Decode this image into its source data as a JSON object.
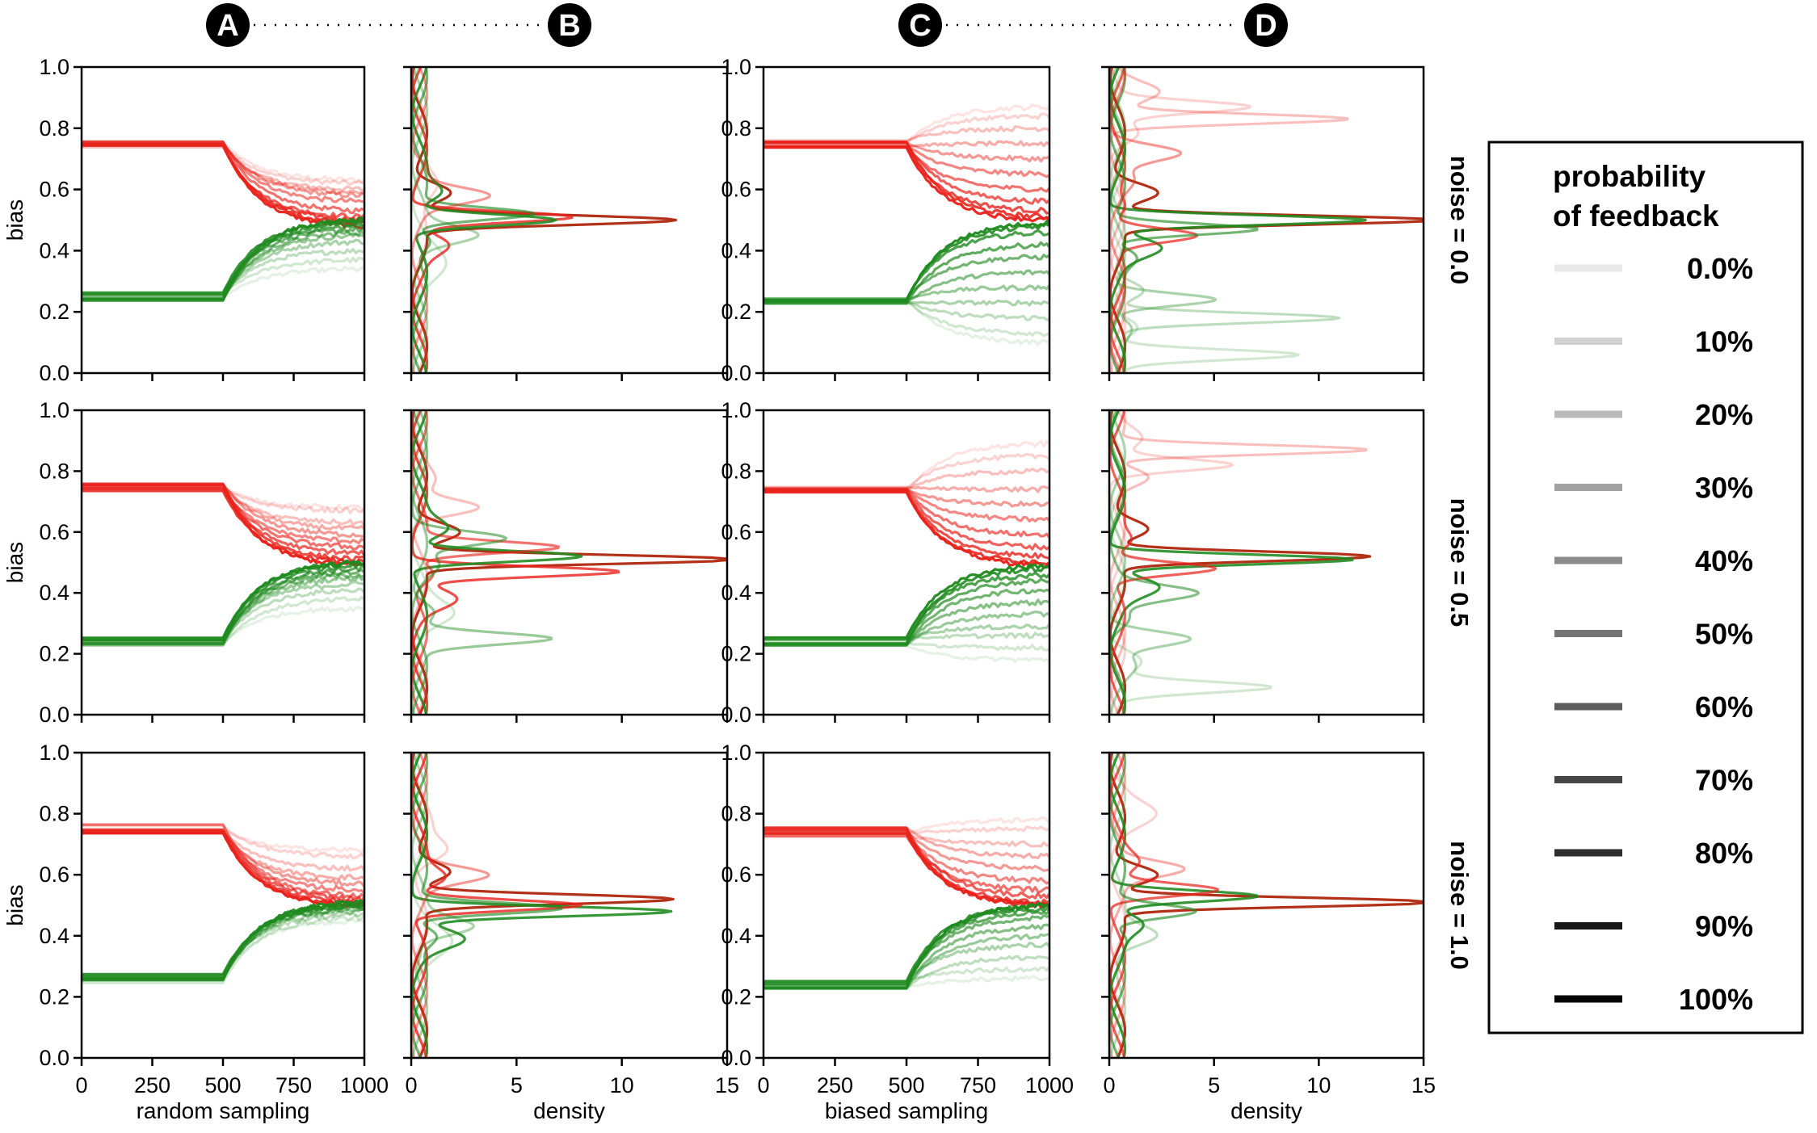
{
  "chart_data": {
    "type": "line",
    "column_badges": [
      "A",
      "B",
      "C",
      "D"
    ],
    "row_labels": [
      "noise = 0.0",
      "noise = 0.5",
      "noise = 1.0"
    ],
    "ylabel": "bias",
    "xlabels": [
      "random sampling",
      "density",
      "biased sampling",
      "density"
    ],
    "trajectory_xlim": [
      0,
      1000
    ],
    "trajectory_xticks": [
      "0",
      "250",
      "500",
      "750",
      "1000"
    ],
    "density_xlim": [
      0,
      15
    ],
    "density_xticks": [
      "0",
      "5",
      "10",
      "15"
    ],
    "ylim": [
      0,
      1
    ],
    "yticks": [
      "0.0",
      "0.2",
      "0.4",
      "0.6",
      "0.8",
      "1.0"
    ],
    "series_colors": {
      "red": "#e8221b",
      "green": "#1f8a1f",
      "dark_red": "#b22a12"
    },
    "legend": {
      "title_line1": "probability",
      "title_line2": "of feedback",
      "entries": [
        {
          "label": "0.0%",
          "p": 0.0
        },
        {
          "label": "10%",
          "p": 0.1
        },
        {
          "label": "20%",
          "p": 0.2
        },
        {
          "label": "30%",
          "p": 0.3
        },
        {
          "label": "40%",
          "p": 0.4
        },
        {
          "label": "50%",
          "p": 0.5
        },
        {
          "label": "60%",
          "p": 0.6
        },
        {
          "label": "70%",
          "p": 0.7
        },
        {
          "label": "80%",
          "p": 0.8
        },
        {
          "label": "90%",
          "p": 0.9
        },
        {
          "label": "100%",
          "p": 1.0
        }
      ]
    },
    "trajectory_panels": [
      {
        "row": 0,
        "column": "A",
        "red_start": 0.75,
        "green_start": 0.25,
        "red_end": [
          0.63,
          0.62,
          0.6,
          0.59,
          0.58,
          0.56,
          0.53,
          0.51,
          0.5,
          0.49,
          0.48
        ],
        "green_end": [
          0.34,
          0.37,
          0.4,
          0.43,
          0.45,
          0.46,
          0.47,
          0.48,
          0.49,
          0.5,
          0.5
        ]
      },
      {
        "row": 0,
        "column": "C",
        "red_start": 0.75,
        "green_start": 0.24,
        "red_end": [
          0.87,
          0.84,
          0.8,
          0.75,
          0.7,
          0.65,
          0.6,
          0.56,
          0.53,
          0.51,
          0.5
        ],
        "green_end": [
          0.1,
          0.13,
          0.18,
          0.23,
          0.28,
          0.33,
          0.38,
          0.42,
          0.46,
          0.48,
          0.49
        ]
      },
      {
        "row": 1,
        "column": "A",
        "red_start": 0.75,
        "green_start": 0.24,
        "red_end": [
          0.68,
          0.67,
          0.63,
          0.61,
          0.59,
          0.57,
          0.55,
          0.53,
          0.51,
          0.5,
          0.49
        ],
        "green_end": [
          0.35,
          0.38,
          0.41,
          0.43,
          0.45,
          0.46,
          0.47,
          0.48,
          0.49,
          0.5,
          0.5
        ]
      },
      {
        "row": 1,
        "column": "C",
        "red_start": 0.74,
        "green_start": 0.24,
        "red_end": [
          0.89,
          0.85,
          0.8,
          0.74,
          0.69,
          0.64,
          0.59,
          0.55,
          0.52,
          0.5,
          0.49
        ],
        "green_end": [
          0.18,
          0.22,
          0.26,
          0.29,
          0.33,
          0.37,
          0.41,
          0.44,
          0.46,
          0.48,
          0.49
        ]
      },
      {
        "row": 2,
        "column": "A",
        "red_start": 0.75,
        "green_start": 0.26,
        "red_end": [
          0.68,
          0.66,
          0.62,
          0.59,
          0.57,
          0.55,
          0.53,
          0.52,
          0.51,
          0.5,
          0.5
        ],
        "green_end": [
          0.45,
          0.46,
          0.47,
          0.48,
          0.49,
          0.49,
          0.5,
          0.5,
          0.5,
          0.51,
          0.51
        ]
      },
      {
        "row": 2,
        "column": "C",
        "red_start": 0.74,
        "green_start": 0.24,
        "red_end": [
          0.78,
          0.75,
          0.7,
          0.66,
          0.62,
          0.58,
          0.55,
          0.53,
          0.51,
          0.5,
          0.5
        ],
        "green_end": [
          0.26,
          0.29,
          0.33,
          0.37,
          0.4,
          0.43,
          0.46,
          0.48,
          0.49,
          0.5,
          0.5
        ]
      }
    ],
    "density_panels": [
      {
        "row": 0,
        "column": "B",
        "peaks": [
          {
            "color": "red",
            "p": 1.0,
            "center": 0.5,
            "height": 12.0
          },
          {
            "color": "red",
            "p": 0.8,
            "center": 0.51,
            "height": 7.5
          },
          {
            "color": "green",
            "p": 0.9,
            "center": 0.5,
            "height": 6.8
          },
          {
            "color": "green",
            "p": 0.6,
            "center": 0.52,
            "height": 5.5
          },
          {
            "color": "red",
            "p": 0.4,
            "center": 0.58,
            "height": 3.0
          },
          {
            "color": "green",
            "p": 0.3,
            "center": 0.45,
            "height": 2.6
          },
          {
            "color": "red",
            "p": 0.1,
            "center": 0.62,
            "height": 1.2
          },
          {
            "color": "green",
            "p": 0.1,
            "center": 0.35,
            "height": 1.0
          }
        ]
      },
      {
        "row": 0,
        "column": "D",
        "peaks": [
          {
            "color": "red",
            "p": 1.0,
            "center": 0.5,
            "height": 15.0
          },
          {
            "color": "green",
            "p": 0.9,
            "center": 0.5,
            "height": 12.0
          },
          {
            "color": "red",
            "p": 0.7,
            "center": 0.45,
            "height": 4.0
          },
          {
            "color": "green",
            "p": 0.6,
            "center": 0.47,
            "height": 7.0
          },
          {
            "color": "red",
            "p": 0.2,
            "center": 0.83,
            "height": 11.0
          },
          {
            "color": "red",
            "p": 0.1,
            "center": 0.87,
            "height": 6.0
          },
          {
            "color": "green",
            "p": 0.2,
            "center": 0.18,
            "height": 10.5
          },
          {
            "color": "green",
            "p": 0.3,
            "center": 0.24,
            "height": 5.0
          },
          {
            "color": "green",
            "p": 0.1,
            "center": 0.06,
            "height": 8.5
          },
          {
            "color": "red",
            "p": 0.4,
            "center": 0.72,
            "height": 3.0
          }
        ]
      },
      {
        "row": 1,
        "column": "B",
        "peaks": [
          {
            "color": "red",
            "p": 1.0,
            "center": 0.51,
            "height": 15.0
          },
          {
            "color": "red",
            "p": 0.8,
            "center": 0.47,
            "height": 9.5
          },
          {
            "color": "green",
            "p": 0.9,
            "center": 0.52,
            "height": 8.0
          },
          {
            "color": "red",
            "p": 0.6,
            "center": 0.55,
            "height": 6.5
          },
          {
            "color": "green",
            "p": 0.4,
            "center": 0.25,
            "height": 6.0
          },
          {
            "color": "green",
            "p": 0.5,
            "center": 0.58,
            "height": 4.0
          },
          {
            "color": "red",
            "p": 0.2,
            "center": 0.68,
            "height": 3.0
          },
          {
            "color": "green",
            "p": 0.1,
            "center": 0.33,
            "height": 1.5
          }
        ]
      },
      {
        "row": 1,
        "column": "D",
        "peaks": [
          {
            "color": "red",
            "p": 1.0,
            "center": 0.52,
            "height": 12.0
          },
          {
            "color": "green",
            "p": 0.9,
            "center": 0.51,
            "height": 11.5
          },
          {
            "color": "red",
            "p": 0.7,
            "center": 0.48,
            "height": 5.0
          },
          {
            "color": "red",
            "p": 0.2,
            "center": 0.87,
            "height": 12.0
          },
          {
            "color": "red",
            "p": 0.1,
            "center": 0.82,
            "height": 5.5
          },
          {
            "color": "green",
            "p": 0.3,
            "center": 0.25,
            "height": 3.5
          },
          {
            "color": "green",
            "p": 0.1,
            "center": 0.09,
            "height": 7.0
          },
          {
            "color": "green",
            "p": 0.5,
            "center": 0.4,
            "height": 3.5
          }
        ]
      },
      {
        "row": 2,
        "column": "B",
        "peaks": [
          {
            "color": "red",
            "p": 1.0,
            "center": 0.52,
            "height": 12.0
          },
          {
            "color": "green",
            "p": 0.9,
            "center": 0.48,
            "height": 12.0
          },
          {
            "color": "red",
            "p": 0.8,
            "center": 0.5,
            "height": 8.0
          },
          {
            "color": "green",
            "p": 0.6,
            "center": 0.49,
            "height": 7.0
          },
          {
            "color": "red",
            "p": 0.4,
            "center": 0.6,
            "height": 3.0
          },
          {
            "color": "green",
            "p": 0.3,
            "center": 0.43,
            "height": 2.5
          },
          {
            "color": "red",
            "p": 0.1,
            "center": 0.68,
            "height": 1.5
          },
          {
            "color": "green",
            "p": 0.1,
            "center": 0.38,
            "height": 1.2
          }
        ]
      },
      {
        "row": 2,
        "column": "D",
        "peaks": [
          {
            "color": "red",
            "p": 1.0,
            "center": 0.51,
            "height": 15.0
          },
          {
            "color": "green",
            "p": 0.9,
            "center": 0.53,
            "height": 7.0
          },
          {
            "color": "red",
            "p": 0.7,
            "center": 0.55,
            "height": 5.0
          },
          {
            "color": "green",
            "p": 0.6,
            "center": 0.48,
            "height": 4.0
          },
          {
            "color": "red",
            "p": 0.3,
            "center": 0.62,
            "height": 3.0
          },
          {
            "color": "green",
            "p": 0.2,
            "center": 0.4,
            "height": 2.0
          },
          {
            "color": "red",
            "p": 0.1,
            "center": 0.8,
            "height": 1.5
          }
        ]
      }
    ]
  }
}
